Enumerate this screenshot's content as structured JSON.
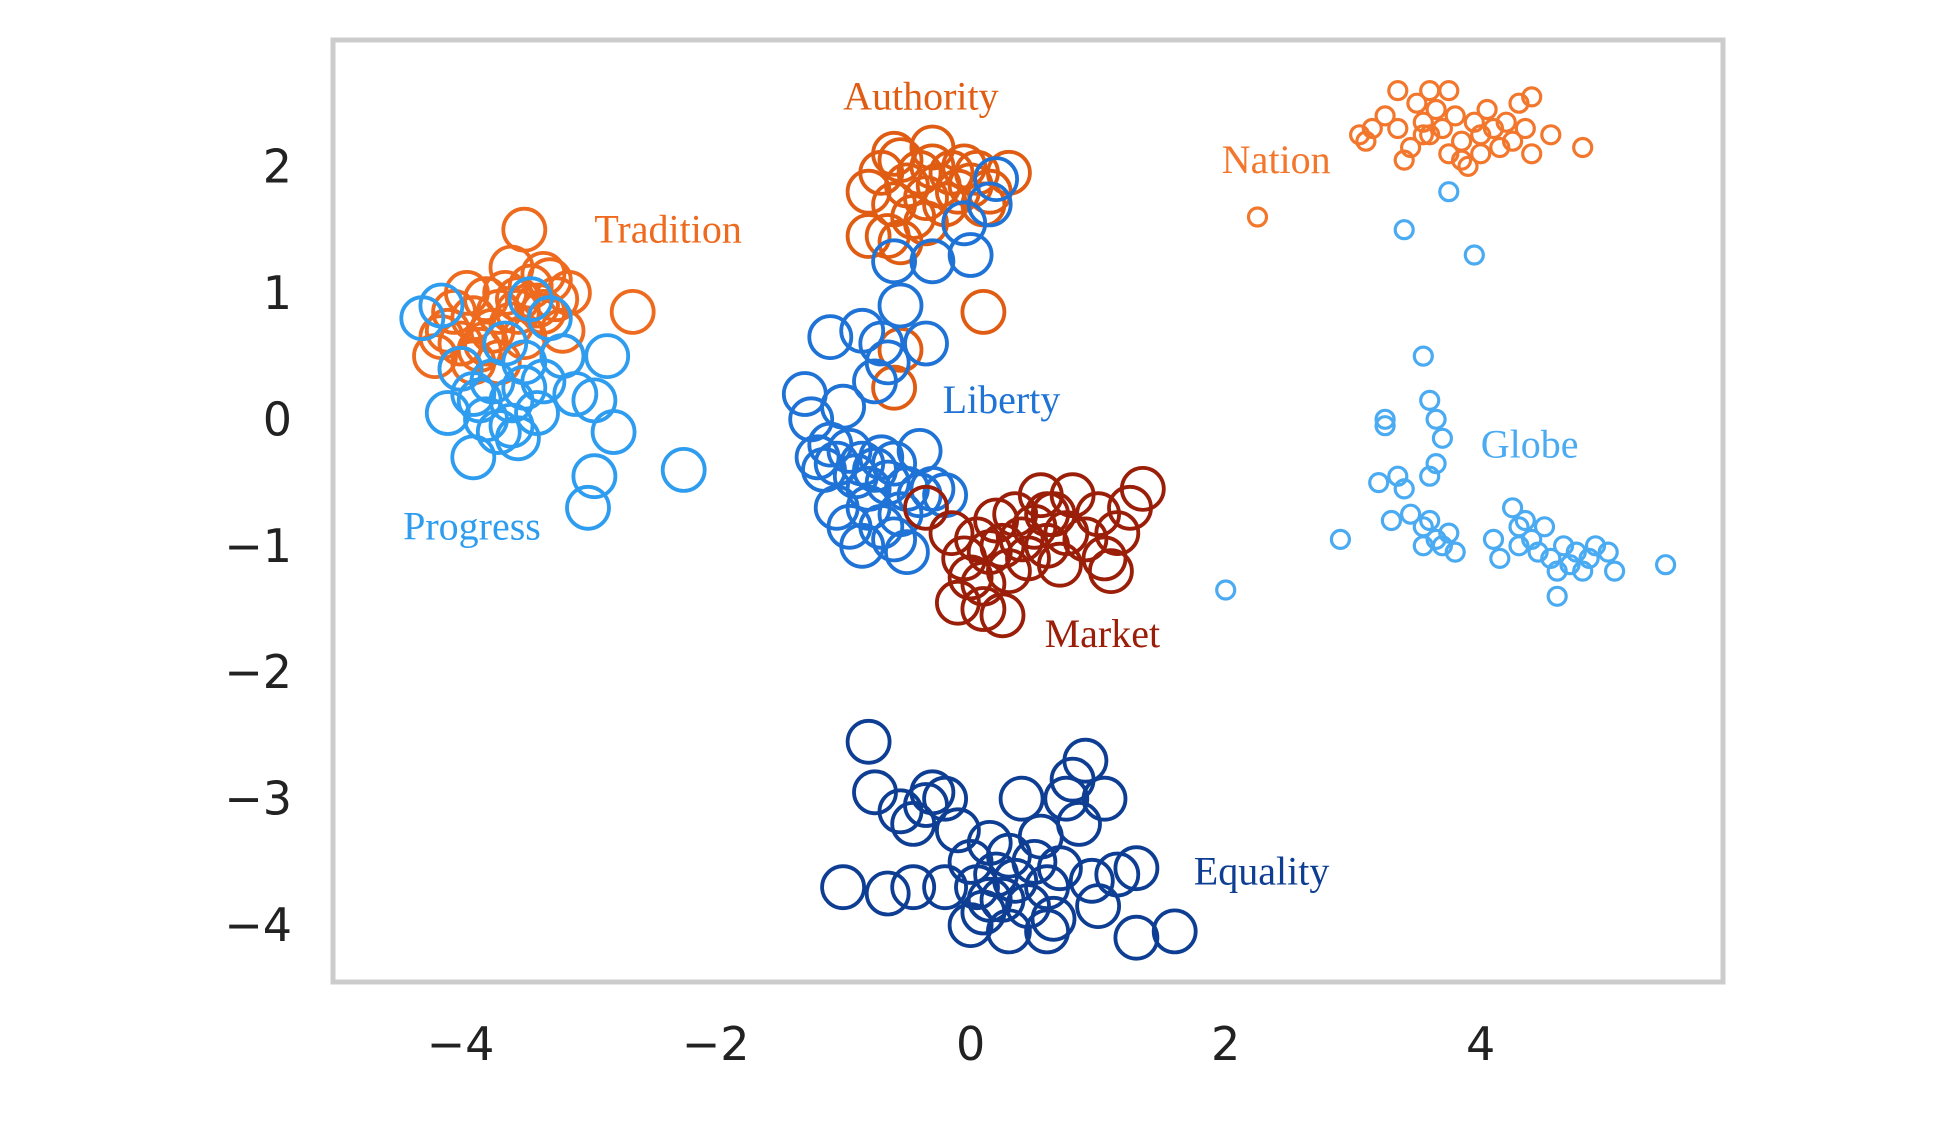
{
  "chart_data": {
    "type": "scatter",
    "title": "",
    "xlabel": "",
    "ylabel": "",
    "xlim": [
      -5.0,
      5.9
    ],
    "ylim": [
      -4.45,
      3.0
    ],
    "x_ticks": [
      {
        "value": -4,
        "label": "−4"
      },
      {
        "value": -2,
        "label": "−2"
      },
      {
        "value": 0,
        "label": "0"
      },
      {
        "value": 2,
        "label": "2"
      },
      {
        "value": 4,
        "label": "4"
      }
    ],
    "y_ticks": [
      {
        "value": 2,
        "label": "2"
      },
      {
        "value": 1,
        "label": "1"
      },
      {
        "value": 0,
        "label": "0"
      },
      {
        "value": -1,
        "label": "−1"
      },
      {
        "value": -2,
        "label": "−2"
      },
      {
        "value": -3,
        "label": "−3"
      },
      {
        "value": -4,
        "label": "−4"
      }
    ],
    "grid": false,
    "legend": "none",
    "series": [
      {
        "name": "Tradition",
        "color": "#ee6a1e",
        "marker_size": "large",
        "label": {
          "text": "Tradition",
          "x": -2.95,
          "y": 1.4
        },
        "points": [
          [
            -4.2,
            0.5
          ],
          [
            -4.1,
            0.7
          ],
          [
            -4.0,
            0.6
          ],
          [
            -3.9,
            0.8
          ],
          [
            -3.85,
            0.55
          ],
          [
            -3.8,
            0.95
          ],
          [
            -3.75,
            0.7
          ],
          [
            -3.7,
            0.85
          ],
          [
            -3.65,
            1.0
          ],
          [
            -3.6,
            0.75
          ],
          [
            -3.55,
            0.95
          ],
          [
            -3.5,
            0.65
          ],
          [
            -3.45,
            1.05
          ],
          [
            -3.4,
            0.9
          ],
          [
            -3.35,
            0.85
          ],
          [
            -3.3,
            1.1
          ],
          [
            -3.25,
            0.95
          ],
          [
            -3.2,
            0.7
          ],
          [
            -3.15,
            1.0
          ],
          [
            -3.9,
            0.45
          ],
          [
            -4.05,
            0.85
          ],
          [
            -3.7,
            0.45
          ],
          [
            -3.6,
            1.2
          ],
          [
            -3.5,
            1.5
          ],
          [
            -3.2,
            0.5
          ],
          [
            -2.65,
            0.85
          ],
          [
            -4.15,
            0.65
          ],
          [
            -3.95,
            1.0
          ],
          [
            -3.8,
            0.6
          ],
          [
            -3.55,
            0.85
          ],
          [
            -3.35,
            1.15
          ],
          [
            -4.0,
            0.4
          ]
        ]
      },
      {
        "name": "Progress",
        "color": "#2e9df0",
        "marker_size": "large",
        "label": {
          "text": "Progress",
          "x": -4.45,
          "y": -0.95
        },
        "points": [
          [
            -4.3,
            0.8
          ],
          [
            -4.15,
            0.9
          ],
          [
            -4.0,
            0.4
          ],
          [
            -3.9,
            0.2
          ],
          [
            -3.8,
            0.0
          ],
          [
            -3.75,
            0.3
          ],
          [
            -3.7,
            -0.1
          ],
          [
            -3.65,
            0.6
          ],
          [
            -3.6,
            0.15
          ],
          [
            -3.55,
            -0.15
          ],
          [
            -3.5,
            0.45
          ],
          [
            -3.45,
            0.95
          ],
          [
            -3.4,
            0.05
          ],
          [
            -3.35,
            0.3
          ],
          [
            -3.3,
            0.8
          ],
          [
            -3.2,
            0.5
          ],
          [
            -3.1,
            0.2
          ],
          [
            -2.95,
            0.15
          ],
          [
            -2.85,
            0.5
          ],
          [
            -2.8,
            -0.1
          ],
          [
            -2.95,
            -0.45
          ],
          [
            -3.0,
            -0.7
          ],
          [
            -2.25,
            -0.4
          ],
          [
            -3.9,
            -0.3
          ],
          [
            -4.1,
            0.05
          ],
          [
            -3.6,
            -0.05
          ],
          [
            -3.85,
            0.15
          ],
          [
            -3.5,
            0.25
          ]
        ]
      },
      {
        "name": "Authority",
        "color": "#e05c12",
        "marker_size": "large",
        "label": {
          "text": "Authority",
          "x": -1.0,
          "y": 2.45
        },
        "points": [
          [
            -0.8,
            1.8
          ],
          [
            -0.7,
            1.95
          ],
          [
            -0.6,
            1.7
          ],
          [
            -0.55,
            2.05
          ],
          [
            -0.5,
            1.85
          ],
          [
            -0.45,
            1.6
          ],
          [
            -0.4,
            1.95
          ],
          [
            -0.35,
            1.75
          ],
          [
            -0.3,
            2.0
          ],
          [
            -0.25,
            1.85
          ],
          [
            -0.2,
            1.7
          ],
          [
            -0.15,
            1.95
          ],
          [
            -0.1,
            1.8
          ],
          [
            -0.05,
            2.0
          ],
          [
            0.0,
            1.85
          ],
          [
            0.05,
            1.95
          ],
          [
            0.1,
            1.7
          ],
          [
            0.15,
            1.8
          ],
          [
            0.3,
            1.95
          ],
          [
            -0.65,
            1.45
          ],
          [
            -0.8,
            1.45
          ],
          [
            -0.55,
            1.4
          ],
          [
            -0.35,
            1.55
          ],
          [
            -0.6,
            2.1
          ],
          [
            -0.3,
            2.15
          ],
          [
            0.1,
            0.85
          ],
          [
            -0.55,
            0.55
          ],
          [
            -0.6,
            0.25
          ]
        ]
      },
      {
        "name": "Liberty",
        "color": "#1f73d6",
        "marker_size": "large",
        "label": {
          "text": "Liberty",
          "x": -0.22,
          "y": 0.05
        },
        "points": [
          [
            -0.7,
            0.6
          ],
          [
            -0.65,
            0.45
          ],
          [
            -0.75,
            0.3
          ],
          [
            -1.1,
            0.65
          ],
          [
            -0.85,
            0.7
          ],
          [
            -0.55,
            0.9
          ],
          [
            -0.35,
            0.6
          ],
          [
            -0.6,
            1.25
          ],
          [
            -0.3,
            1.25
          ],
          [
            0.0,
            1.3
          ],
          [
            0.2,
            1.9
          ],
          [
            0.15,
            1.7
          ],
          [
            -0.05,
            1.55
          ],
          [
            -1.3,
            0.2
          ],
          [
            -1.25,
            0.0
          ],
          [
            -1.2,
            -0.3
          ],
          [
            -1.15,
            -0.4
          ],
          [
            -1.1,
            -0.2
          ],
          [
            -1.05,
            -0.35
          ],
          [
            -1.0,
            0.1
          ],
          [
            -0.95,
            -0.25
          ],
          [
            -0.9,
            -0.45
          ],
          [
            -0.85,
            -0.35
          ],
          [
            -0.8,
            -0.55
          ],
          [
            -0.75,
            -0.4
          ],
          [
            -0.7,
            -0.3
          ],
          [
            -0.65,
            -0.5
          ],
          [
            -0.6,
            -0.35
          ],
          [
            -0.55,
            -0.75
          ],
          [
            -0.5,
            -0.55
          ],
          [
            -0.4,
            -0.25
          ],
          [
            -0.3,
            -0.55
          ],
          [
            -1.05,
            -0.7
          ],
          [
            -0.95,
            -0.85
          ],
          [
            -0.85,
            -1.0
          ],
          [
            -0.8,
            -0.7
          ],
          [
            -0.7,
            -0.85
          ],
          [
            -0.6,
            -0.95
          ],
          [
            -0.5,
            -1.05
          ],
          [
            -0.4,
            -0.6
          ],
          [
            -0.2,
            -0.6
          ]
        ]
      },
      {
        "name": "Market",
        "color": "#9a1e08",
        "marker_size": "large",
        "label": {
          "text": "Market",
          "x": 0.58,
          "y": -1.8
        },
        "points": [
          [
            -0.35,
            -0.7
          ],
          [
            -0.15,
            -0.9
          ],
          [
            -0.05,
            -1.1
          ],
          [
            0.0,
            -1.25
          ],
          [
            0.05,
            -0.95
          ],
          [
            0.1,
            -1.3
          ],
          [
            0.15,
            -1.05
          ],
          [
            0.2,
            -0.8
          ],
          [
            0.25,
            -1.0
          ],
          [
            0.3,
            -1.2
          ],
          [
            0.35,
            -0.75
          ],
          [
            0.4,
            -0.95
          ],
          [
            0.45,
            -1.1
          ],
          [
            0.5,
            -0.85
          ],
          [
            0.55,
            -0.6
          ],
          [
            0.6,
            -1.0
          ],
          [
            0.65,
            -0.75
          ],
          [
            0.7,
            -1.15
          ],
          [
            0.75,
            -0.9
          ],
          [
            0.8,
            -0.6
          ],
          [
            0.9,
            -0.95
          ],
          [
            1.0,
            -0.75
          ],
          [
            1.05,
            -1.1
          ],
          [
            1.15,
            -0.9
          ],
          [
            1.25,
            -0.7
          ],
          [
            1.35,
            -0.55
          ],
          [
            -0.1,
            -1.45
          ],
          [
            0.1,
            -1.5
          ],
          [
            0.25,
            -1.55
          ],
          [
            1.1,
            -1.2
          ],
          [
            0.6,
            -0.75
          ]
        ]
      },
      {
        "name": "Equality",
        "color": "#0e3e93",
        "marker_size": "large",
        "label": {
          "text": "Equality",
          "x": 1.75,
          "y": -3.68
        },
        "points": [
          [
            -0.8,
            -2.55
          ],
          [
            -0.75,
            -2.95
          ],
          [
            -0.55,
            -3.1
          ],
          [
            -0.45,
            -3.2
          ],
          [
            -0.35,
            -3.05
          ],
          [
            -0.3,
            -2.95
          ],
          [
            -0.2,
            -3.0
          ],
          [
            -0.1,
            -3.25
          ],
          [
            0.0,
            -3.5
          ],
          [
            0.05,
            -3.7
          ],
          [
            0.1,
            -3.9
          ],
          [
            0.15,
            -3.35
          ],
          [
            0.2,
            -3.6
          ],
          [
            0.25,
            -3.8
          ],
          [
            0.3,
            -3.45
          ],
          [
            0.35,
            -3.65
          ],
          [
            0.4,
            -3.0
          ],
          [
            0.45,
            -3.85
          ],
          [
            0.5,
            -3.5
          ],
          [
            0.55,
            -3.3
          ],
          [
            0.6,
            -3.7
          ],
          [
            0.65,
            -3.95
          ],
          [
            0.7,
            -3.55
          ],
          [
            0.75,
            -3.0
          ],
          [
            0.8,
            -2.85
          ],
          [
            0.85,
            -3.2
          ],
          [
            0.9,
            -2.7
          ],
          [
            0.95,
            -3.65
          ],
          [
            1.0,
            -3.85
          ],
          [
            1.05,
            -3.0
          ],
          [
            1.15,
            -3.6
          ],
          [
            1.3,
            -3.55
          ],
          [
            1.3,
            -4.1
          ],
          [
            1.6,
            -4.05
          ],
          [
            -1.0,
            -3.7
          ],
          [
            -0.65,
            -3.75
          ],
          [
            -0.45,
            -3.7
          ],
          [
            -0.2,
            -3.7
          ],
          [
            0.15,
            -3.8
          ],
          [
            0.0,
            -4.0
          ],
          [
            0.3,
            -4.05
          ],
          [
            0.6,
            -4.05
          ]
        ]
      },
      {
        "name": "Nation",
        "color": "#f2772c",
        "marker_size": "small",
        "label": {
          "text": "Nation",
          "x": 1.97,
          "y": 1.95
        },
        "points": [
          [
            3.05,
            2.25
          ],
          [
            3.15,
            2.3
          ],
          [
            3.25,
            2.4
          ],
          [
            3.35,
            2.3
          ],
          [
            3.4,
            2.05
          ],
          [
            3.45,
            2.15
          ],
          [
            3.5,
            2.5
          ],
          [
            3.55,
            2.35
          ],
          [
            3.6,
            2.25
          ],
          [
            3.65,
            2.45
          ],
          [
            3.7,
            2.3
          ],
          [
            3.75,
            2.1
          ],
          [
            3.8,
            2.4
          ],
          [
            3.85,
            2.2
          ],
          [
            3.9,
            2.0
          ],
          [
            3.95,
            2.35
          ],
          [
            4.0,
            2.25
          ],
          [
            4.05,
            2.45
          ],
          [
            4.1,
            2.3
          ],
          [
            4.15,
            2.15
          ],
          [
            4.2,
            2.35
          ],
          [
            4.25,
            2.2
          ],
          [
            4.3,
            2.5
          ],
          [
            4.35,
            2.3
          ],
          [
            4.4,
            2.1
          ],
          [
            3.35,
            2.6
          ],
          [
            3.6,
            2.6
          ],
          [
            3.75,
            2.6
          ],
          [
            4.4,
            2.55
          ],
          [
            4.55,
            2.25
          ],
          [
            4.8,
            2.15
          ],
          [
            2.25,
            1.6
          ],
          [
            3.85,
            2.05
          ],
          [
            4.0,
            2.1
          ],
          [
            3.55,
            2.25
          ],
          [
            3.1,
            2.2
          ]
        ]
      },
      {
        "name": "Globe",
        "color": "#4aabf2",
        "marker_size": "small",
        "label": {
          "text": "Globe",
          "x": 4.0,
          "y": -0.3
        },
        "points": [
          [
            3.75,
            1.8
          ],
          [
            3.4,
            1.5
          ],
          [
            3.95,
            1.3
          ],
          [
            3.55,
            0.5
          ],
          [
            3.6,
            0.15
          ],
          [
            3.65,
            0.0
          ],
          [
            3.7,
            -0.15
          ],
          [
            3.65,
            -0.35
          ],
          [
            3.6,
            -0.45
          ],
          [
            3.25,
            -0.05
          ],
          [
            3.25,
            0.0
          ],
          [
            3.35,
            -0.45
          ],
          [
            3.4,
            -0.55
          ],
          [
            3.2,
            -0.5
          ],
          [
            3.3,
            -0.8
          ],
          [
            3.45,
            -0.75
          ],
          [
            3.55,
            -0.85
          ],
          [
            3.6,
            -0.8
          ],
          [
            3.65,
            -0.95
          ],
          [
            3.7,
            -1.0
          ],
          [
            3.75,
            -0.9
          ],
          [
            3.8,
            -1.05
          ],
          [
            3.55,
            -1.0
          ],
          [
            2.9,
            -0.95
          ],
          [
            2.0,
            -1.35
          ],
          [
            4.1,
            -0.95
          ],
          [
            4.15,
            -1.1
          ],
          [
            4.25,
            -0.7
          ],
          [
            4.3,
            -0.85
          ],
          [
            4.35,
            -0.8
          ],
          [
            4.4,
            -0.95
          ],
          [
            4.45,
            -1.05
          ],
          [
            4.5,
            -0.85
          ],
          [
            4.55,
            -1.1
          ],
          [
            4.6,
            -1.2
          ],
          [
            4.65,
            -1.0
          ],
          [
            4.7,
            -1.15
          ],
          [
            4.75,
            -1.05
          ],
          [
            4.8,
            -1.2
          ],
          [
            4.85,
            -1.1
          ],
          [
            4.9,
            -1.0
          ],
          [
            5.0,
            -1.05
          ],
          [
            5.05,
            -1.2
          ],
          [
            5.45,
            -1.15
          ],
          [
            4.6,
            -1.4
          ],
          [
            4.3,
            -1.0
          ]
        ]
      }
    ]
  }
}
